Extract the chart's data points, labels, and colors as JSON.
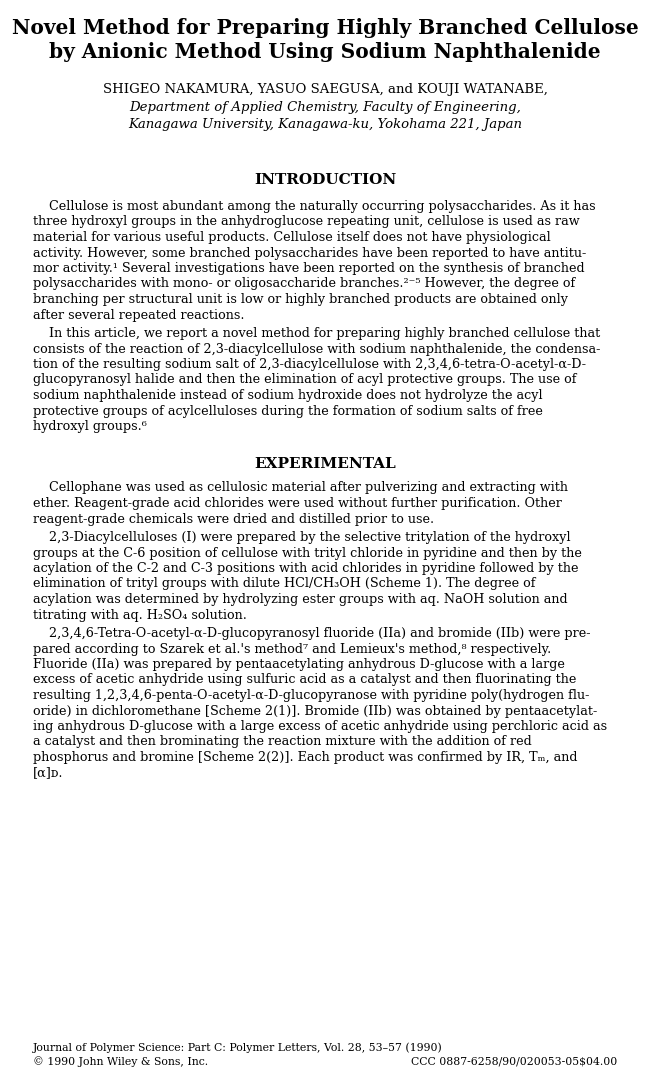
{
  "title_line1": "Novel Method for Preparing Highly Branched Cellulose",
  "title_line2": "by Anionic Method Using Sodium Naphthalenide",
  "authors": "SHIGEO NAKAMURA, YASUO SAEGUSA, and KOUJI WATANABE,",
  "affiliation1": "Department of Applied Chemistry, Faculty of Engineering,",
  "affiliation2": "Kanagawa University, Kanagawa-ku, Yokohama 221, Japan",
  "section1_title": "INTRODUCTION",
  "section2_title": "EXPERIMENTAL",
  "intro1_lines": [
    "    Cellulose is most abundant among the naturally occurring polysaccharides. As it has",
    "three hydroxyl groups in the anhydroglucose repeating unit, cellulose is used as raw",
    "material for various useful products. Cellulose itself does not have physiological",
    "activity. However, some branched polysaccharides have been reported to have antitu-",
    "mor activity.¹ Several investigations have been reported on the synthesis of branched",
    "polysaccharides with mono- or oligosaccharide branches.²⁻⁵ However, the degree of",
    "branching per structural unit is low or highly branched products are obtained only",
    "after several repeated reactions."
  ],
  "intro2_lines": [
    "    In this article, we report a novel method for preparing highly branched cellulose that",
    "consists of the reaction of 2,3-diacylcellulose with sodium naphthalenide, the condensa-",
    "tion of the resulting sodium salt of 2,3-diacylcellulose with 2,3,4,6-tetra-O-acetyl-α-D-",
    "glucopyranosyl halide and then the elimination of acyl protective groups. The use of",
    "sodium naphthalenide instead of sodium hydroxide does not hydrolyze the acyl",
    "protective groups of acylcelluloses during the formation of sodium salts of free",
    "hydroxyl groups.⁶"
  ],
  "exp1_lines": [
    "    Cellophane was used as cellulosic material after pulverizing and extracting with",
    "ether. Reagent-grade acid chlorides were used without further purification. Other",
    "reagent-grade chemicals were dried and distilled prior to use."
  ],
  "exp2_lines": [
    "    2,3-Diacylcelluloses (I) were prepared by the selective tritylation of the hydroxyl",
    "groups at the C-6 position of cellulose with trityl chloride in pyridine and then by the",
    "acylation of the C-2 and C-3 positions with acid chlorides in pyridine followed by the",
    "elimination of trityl groups with dilute HCl/CH₃OH (Scheme 1). The degree of",
    "acylation was determined by hydrolyzing ester groups with aq. NaOH solution and",
    "titrating with aq. H₂SO₄ solution."
  ],
  "exp3_lines": [
    "    2,3,4,6-Tetra-O-acetyl-α-D-glucopyranosyl fluoride (IIa) and bromide (IIb) were pre-",
    "pared according to Szarek et al.'s method⁷ and Lemieux's method,⁸ respectively.",
    "Fluoride (IIa) was prepared by pentaacetylating anhydrous D-glucose with a large",
    "excess of acetic anhydride using sulfuric acid as a catalyst and then fluorinating the",
    "resulting 1,2,3,4,6-penta-O-acetyl-α-D-glucopyranose with pyridine poly(hydrogen flu-",
    "oride) in dichloromethane [Scheme 2(1)]. Bromide (IIb) was obtained by pentaacetylat-",
    "ing anhydrous D-glucose with a large excess of acetic anhydride using perchloric acid as",
    "a catalyst and then brominating the reaction mixture with the addition of red",
    "phosphorus and bromine [Scheme 2(2)]. Each product was confirmed by IR, Tₘ, and",
    "[α]ᴅ."
  ],
  "footer_left1": "Journal of Polymer Science: Part C: Polymer Letters, Vol. 28, 53–57 (1990)",
  "footer_left2": "© 1990 John Wiley & Sons, Inc.",
  "footer_right": "CCC 0887-6258/90/020053-05$04.00",
  "bg_color": "#ffffff",
  "text_color": "#000000"
}
